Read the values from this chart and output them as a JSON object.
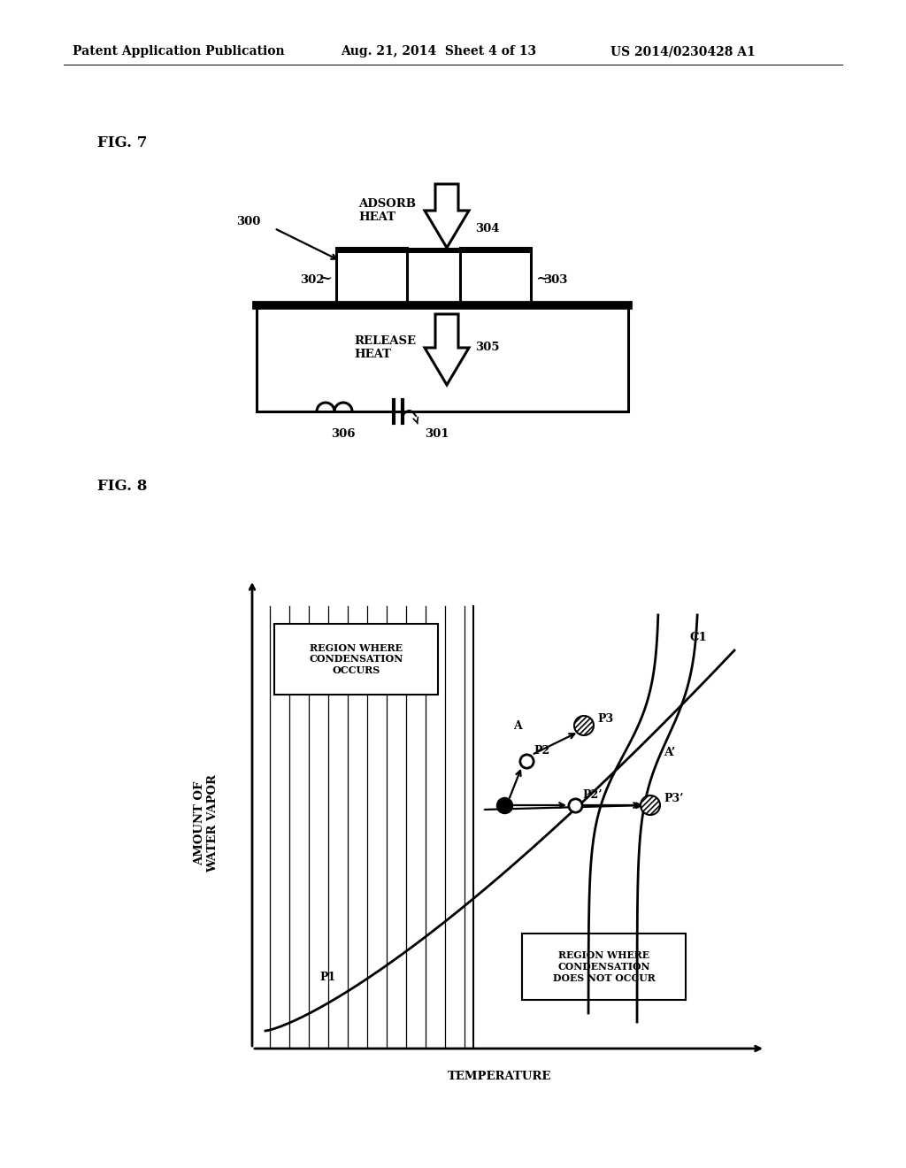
{
  "bg_color": "#ffffff",
  "header_left": "Patent Application Publication",
  "header_mid": "Aug. 21, 2014  Sheet 4 of 13",
  "header_right": "US 2014/0230428 A1",
  "fig7_label": "FIG. 7",
  "fig8_label": "FIG. 8",
  "label_300": "300",
  "label_301": "301",
  "label_302": "302",
  "label_303": "303",
  "label_304": "304",
  "label_305": "305",
  "label_306": "306",
  "adsorb_heat": "ADSORB\nHEAT",
  "release_heat": "RELEASE\nHEAT",
  "region_condensation": "REGION WHERE\nCONDENSATION\nOCCURS",
  "region_no_condensation": "REGION WHERE\nCONDENSATION\nDOES NOT OCCUR",
  "xlabel": "TEMPERATURE",
  "ylabel": "AMOUNT OF\nWATER VAPOR",
  "label_P1": "P1",
  "label_P2": "P2",
  "label_P2prime": "P2’",
  "label_P3": "P3",
  "label_P3prime": "P3’",
  "label_A": "A",
  "label_Aprime": "A’",
  "label_C1": "C1"
}
